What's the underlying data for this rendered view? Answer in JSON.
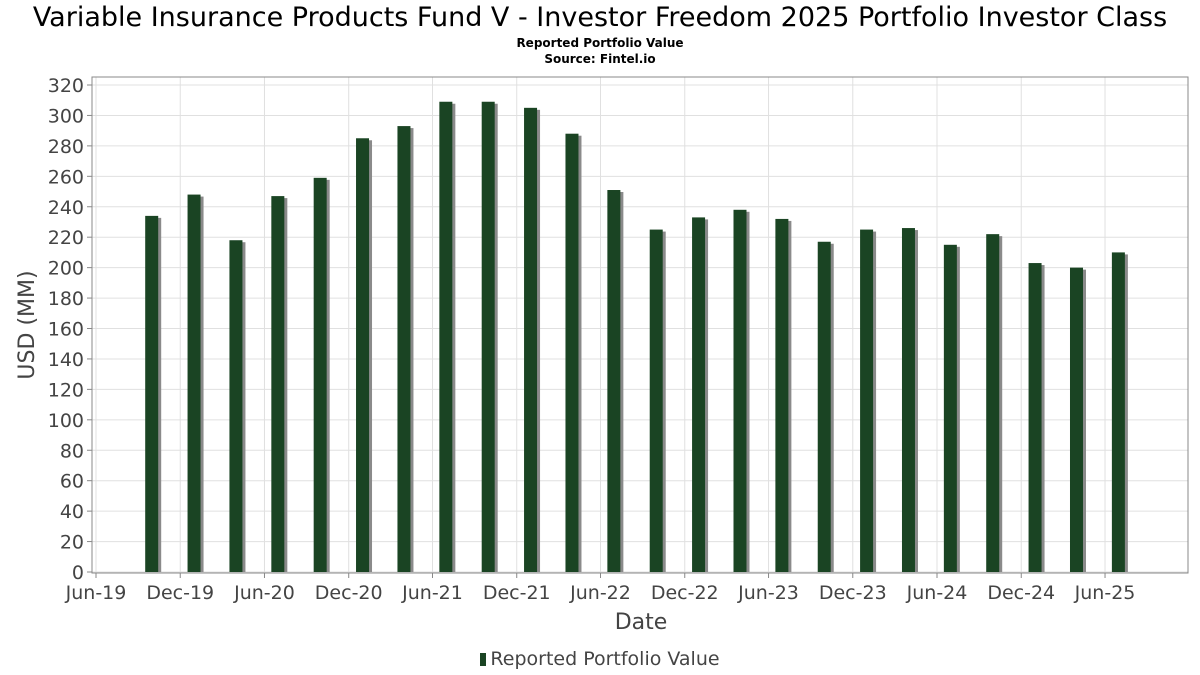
{
  "chart_data": {
    "type": "bar",
    "title": "Variable Insurance Products Fund V - Investor Freedom 2025 Portfolio Investor Class",
    "subtitle": [
      "Reported Portfolio Value",
      "Source: Fintel.io"
    ],
    "xlabel": "Date",
    "ylabel": "USD (MM)",
    "ylim": [
      0,
      320
    ],
    "yticks": [
      0,
      20,
      40,
      60,
      80,
      100,
      120,
      140,
      160,
      180,
      200,
      220,
      240,
      260,
      280,
      300,
      320
    ],
    "xlim": [
      "2019-06-01",
      "2025-10-31"
    ],
    "xticks": [
      {
        "label": "Jun-19",
        "date": "2019-06-01"
      },
      {
        "label": "Dec-19",
        "date": "2019-12-01"
      },
      {
        "label": "Jun-20",
        "date": "2020-06-01"
      },
      {
        "label": "Dec-20",
        "date": "2020-12-01"
      },
      {
        "label": "Jun-21",
        "date": "2021-06-01"
      },
      {
        "label": "Dec-21",
        "date": "2021-12-01"
      },
      {
        "label": "Jun-22",
        "date": "2022-06-01"
      },
      {
        "label": "Dec-22",
        "date": "2022-12-01"
      },
      {
        "label": "Jun-23",
        "date": "2023-06-01"
      },
      {
        "label": "Dec-23",
        "date": "2023-12-01"
      },
      {
        "label": "Jun-24",
        "date": "2024-06-01"
      },
      {
        "label": "Dec-24",
        "date": "2024-12-01"
      },
      {
        "label": "Jun-25",
        "date": "2025-06-01"
      }
    ],
    "grid": true,
    "legend_position": "bottom",
    "series": [
      {
        "name": "Reported Portfolio Value",
        "color": "#1a4423",
        "shadow_color": "#8a8a8a",
        "x": [
          "2019-09-30",
          "2019-12-31",
          "2020-03-31",
          "2020-06-30",
          "2020-09-30",
          "2020-12-31",
          "2021-03-31",
          "2021-06-30",
          "2021-09-30",
          "2021-12-31",
          "2022-03-31",
          "2022-06-30",
          "2022-09-30",
          "2022-12-31",
          "2023-03-31",
          "2023-06-30",
          "2023-09-30",
          "2023-12-31",
          "2024-03-31",
          "2024-06-30",
          "2024-09-30",
          "2024-12-31",
          "2025-03-31",
          "2025-06-30"
        ],
        "values": [
          234,
          248,
          218,
          247,
          259,
          285,
          293,
          309,
          309,
          305,
          288,
          251,
          225,
          233,
          238,
          232,
          217,
          225,
          226,
          215,
          222,
          203,
          200,
          210
        ]
      }
    ]
  }
}
